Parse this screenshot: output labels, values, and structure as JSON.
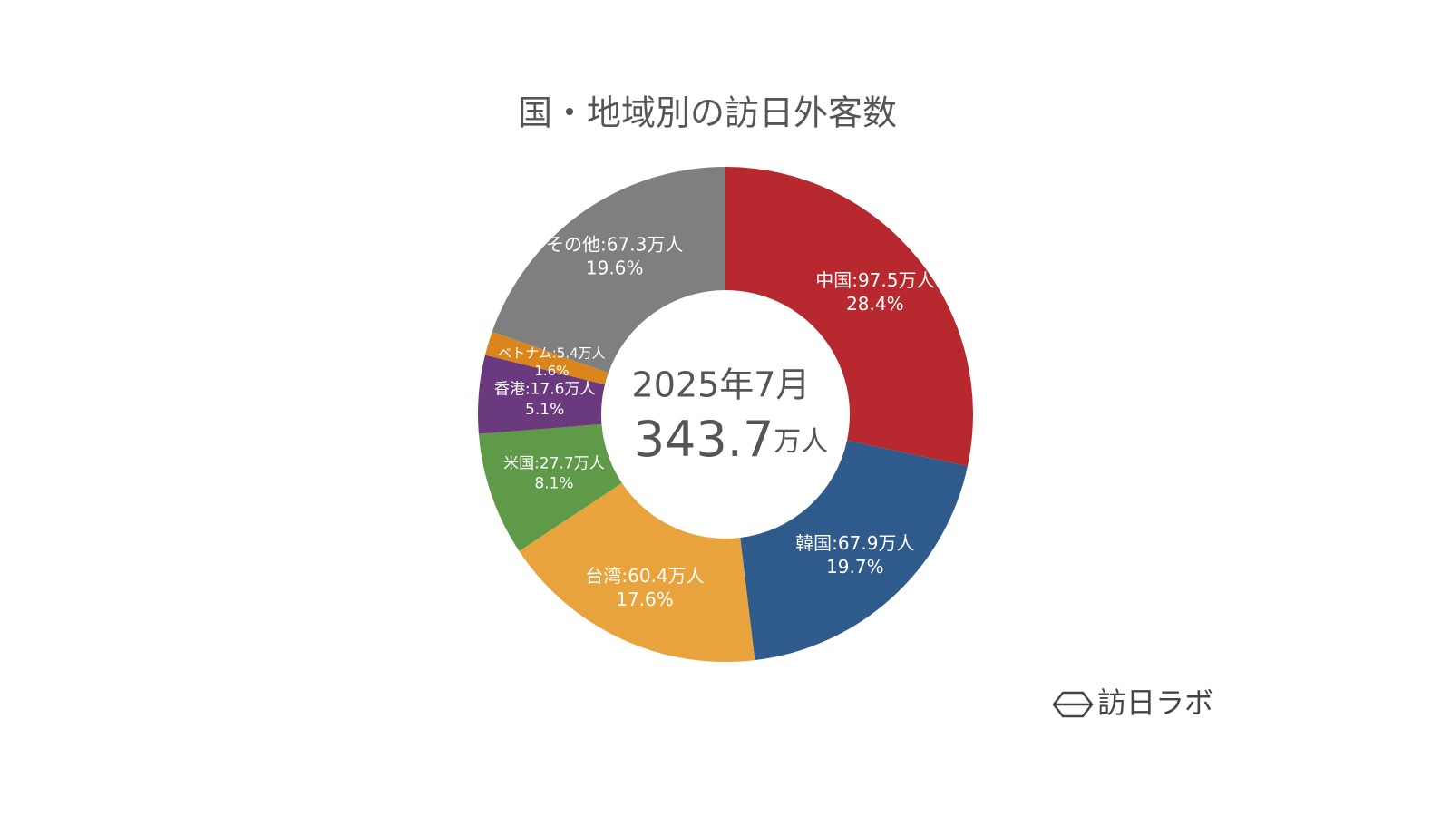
{
  "chart_data": {
    "type": "donut",
    "title": "国・地域別の訪日外客数",
    "categories": [
      "中国",
      "韓国",
      "台湾",
      "米国",
      "香港",
      "ベトナム",
      "その他"
    ],
    "values": [
      97.5,
      67.9,
      60.4,
      27.7,
      17.6,
      5.4,
      67.3
    ],
    "value_labels": [
      "中国:97.5万人",
      "韓国:67.9万人",
      "台湾:60.4万人",
      "米国:27.7万人",
      "香港:17.6万人",
      "ベトナム:5.4万人",
      "その他:67.3万人"
    ],
    "percent_labels": [
      "28.4%",
      "19.7%",
      "17.6%",
      "8.1%",
      "5.1%",
      "1.6%",
      "19.6%"
    ],
    "colors": [
      "#b8292f",
      "#2e5a8c",
      "#e8a33d",
      "#5e9a48",
      "#6b3a7e",
      "#d9861c",
      "#7f7f7f"
    ],
    "center": {
      "date": "2025年7月",
      "total": 343.7,
      "total_unit": "万人"
    },
    "brand": "訪日ラボ"
  }
}
